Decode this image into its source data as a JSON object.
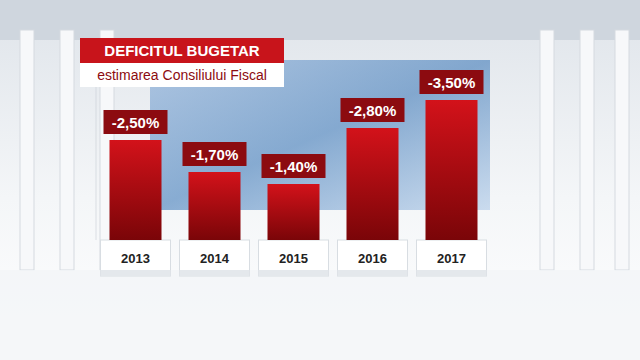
{
  "chart_data": {
    "type": "bar",
    "title": "DEFICITUL BUGETAR",
    "subtitle": "estimarea Consiliului Fiscal",
    "categories": [
      "2013",
      "2014",
      "2015",
      "2016",
      "2017"
    ],
    "values": [
      -2.5,
      -1.7,
      -1.4,
      -2.8,
      -3.5
    ],
    "value_labels": [
      "-2,50%",
      "-1,70%",
      "-1,40%",
      "-2,80%",
      "-3,50%"
    ],
    "color": "#d3121a",
    "ylim": [
      0,
      -4
    ],
    "data_labels": true,
    "tick_labels": "x",
    "grid": false
  }
}
